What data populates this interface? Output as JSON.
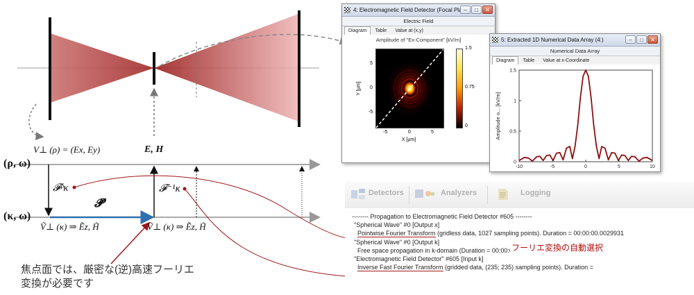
{
  "diagram": {
    "label_V_rho": "V⊥ (ρ) = (Ex, Ey)",
    "label_EH": "E, H",
    "label_rho_omega": "(ρ, ω)",
    "label_kappa_omega": "(κ, ω)",
    "label_F_forward": "𝓕ᵖκ",
    "label_F_inverse": "𝓕⁻¹κ",
    "label_P": "𝓟̃",
    "label_V_kappa_left": "Ṽ⊥ (κ) ⇒ Ẽz, H̃",
    "label_V_kappa_right": "Ṽ⊥ (κ) ⇒ Ẽz, H̃",
    "note_line1": "焦点面では、厳密な(逆)高速フーリエ",
    "note_line2": "変換が必要です",
    "colors": {
      "beam": "#b33b3b",
      "annotation": "#a01818",
      "arrow_blue": "#2f6fb0"
    }
  },
  "window1": {
    "title": "4: Electromagnetic Field Detector (Focal Plane) ...",
    "subtitle": "Electric Field",
    "tabs": [
      "Diagram",
      "Table",
      "Value at (x,y)"
    ],
    "plot_title": "Amplitude of \"Ex-Component\"  [kV/m]",
    "xlabel": "X [µm]",
    "ylabel": "Y [µm]",
    "xticks": [
      "-5",
      "0",
      "5"
    ],
    "yticks": [
      "5",
      "0",
      "-5"
    ],
    "colorbar_ticks": [
      "1.5",
      "0.75",
      "0"
    ],
    "buttons": {
      "min": "–",
      "max": "□",
      "close": "✕"
    }
  },
  "window2": {
    "title": "5: Extracted 1D Numerical Data Array (4:)",
    "subtitle": "Numerical Data Array",
    "tabs": [
      "Diagram",
      "Table",
      "Value at x-Coordinate"
    ],
    "xlabel": "Coordinate [µm]",
    "ylabel": "Amplitude o... [kV/m]",
    "buttons": {
      "min": "–",
      "max": "□",
      "close": "✕"
    }
  },
  "chart_data": {
    "type": "line",
    "xlabel": "Coordinate [µm]",
    "ylabel": "Amplitude o... [kV/m]",
    "xlim": [
      -10,
      10
    ],
    "ylim": [
      0,
      1.5
    ],
    "xticks": [
      -10,
      -5,
      0,
      5,
      10
    ],
    "yticks": [
      0,
      0.5,
      1,
      1.5
    ],
    "grid": false,
    "series": [
      {
        "color": "#8b1010",
        "x": [
          -10,
          -9.2,
          -8.6,
          -8,
          -7.4,
          -6.9,
          -6.4,
          -5.9,
          -5.4,
          -4.9,
          -4.4,
          -3.9,
          -3.4,
          -2.9,
          -2.4,
          -2,
          -1.6,
          -1.2,
          -0.8,
          -0.4,
          0,
          0.4,
          0.8,
          1.2,
          1.6,
          2,
          2.4,
          2.9,
          3.4,
          3.9,
          4.4,
          4.9,
          5.4,
          5.9,
          6.4,
          6.9,
          7.4,
          8,
          8.6,
          9.2,
          10
        ],
        "y": [
          0.02,
          0.07,
          0.06,
          0.01,
          0.08,
          0.09,
          0.02,
          0.1,
          0.11,
          0.02,
          0.14,
          0.15,
          0.03,
          0.22,
          0.25,
          0.05,
          0.25,
          0.6,
          1.05,
          1.4,
          1.5,
          1.4,
          1.05,
          0.6,
          0.25,
          0.05,
          0.25,
          0.22,
          0.03,
          0.15,
          0.14,
          0.02,
          0.11,
          0.1,
          0.02,
          0.09,
          0.08,
          0.01,
          0.06,
          0.07,
          0.02
        ]
      }
    ]
  },
  "toolbar": {
    "detectors": "Detectors",
    "analyzers": "Analyzers",
    "logging": "Logging"
  },
  "log": {
    "line1": "-------- Propagation to Electromagnetic Field Detector #605 --------",
    "line2": "\"Spherical Wave\" #0 [Output x]",
    "line3a": "Pointwise Fourier Transform",
    "line3b": " (gridless data, 1027 sampling points). Duration = 00:00:00.0029931",
    "line4": "\"Spherical Wave\" #0 [Output k]",
    "line5": "Free space propagation in k-domain (Duration = 00:00:00.0009963)",
    "line6": "\"Electromagnetic Field Detector\" #605 [Input k]",
    "line7a": "Inverse Fast Fourier Transform",
    "line7b": " (gridded data, (235; 235) sampling points). Duration =",
    "annotation": "フーリエ変換の自動選択"
  }
}
